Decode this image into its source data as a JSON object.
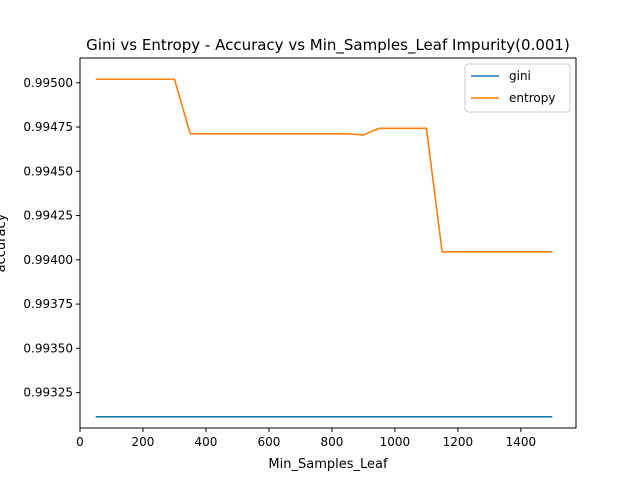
{
  "chart_data": {
    "type": "line",
    "title": "Gini vs Entropy - Accuracy vs Min_Samples_Leaf Impurity(0.001)",
    "xlabel": "Min_Samples_Leaf",
    "ylabel": "accuracy",
    "xlim": [
      0,
      1575
    ],
    "ylim": [
      0.99305,
      0.99514
    ],
    "x_ticks": [
      0,
      200,
      400,
      600,
      800,
      1000,
      1200,
      1400
    ],
    "y_ticks": [
      0.99325,
      0.9935,
      0.99375,
      0.994,
      0.99425,
      0.9945,
      0.99475,
      0.995
    ],
    "x_tick_labels": [
      "0",
      "200",
      "400",
      "600",
      "800",
      "1000",
      "1200",
      "1400"
    ],
    "y_tick_labels": [
      "0.99325",
      "0.99350",
      "0.99375",
      "0.99400",
      "0.99425",
      "0.99450",
      "0.99475",
      "0.99500"
    ],
    "grid": false,
    "legend_position": "top-right",
    "x": [
      50,
      100,
      150,
      200,
      250,
      300,
      350,
      400,
      450,
      500,
      550,
      600,
      650,
      700,
      750,
      800,
      850,
      900,
      950,
      1000,
      1050,
      1100,
      1150,
      1200,
      1250,
      1300,
      1350,
      1400,
      1450,
      1500
    ],
    "series": [
      {
        "name": "gini",
        "color": "#1f77b4",
        "values": [
          0.993113,
          0.993113,
          0.993113,
          0.993113,
          0.993113,
          0.993113,
          0.993113,
          0.993113,
          0.993113,
          0.993113,
          0.993113,
          0.993113,
          0.993113,
          0.993113,
          0.993113,
          0.993113,
          0.993113,
          0.993113,
          0.993113,
          0.993113,
          0.993113,
          0.993113,
          0.993113,
          0.993113,
          0.993113,
          0.993113,
          0.993113,
          0.993113,
          0.993113,
          0.993113
        ]
      },
      {
        "name": "entropy",
        "color": "#ff7f0e",
        "values": [
          0.99502,
          0.99502,
          0.99502,
          0.99502,
          0.99502,
          0.99502,
          0.994712,
          0.994712,
          0.994712,
          0.994712,
          0.994712,
          0.994712,
          0.994712,
          0.994712,
          0.994712,
          0.994712,
          0.994712,
          0.994705,
          0.994743,
          0.994743,
          0.994743,
          0.994743,
          0.994045,
          0.994045,
          0.994045,
          0.994045,
          0.994045,
          0.994045,
          0.994045,
          0.994045
        ]
      }
    ]
  }
}
